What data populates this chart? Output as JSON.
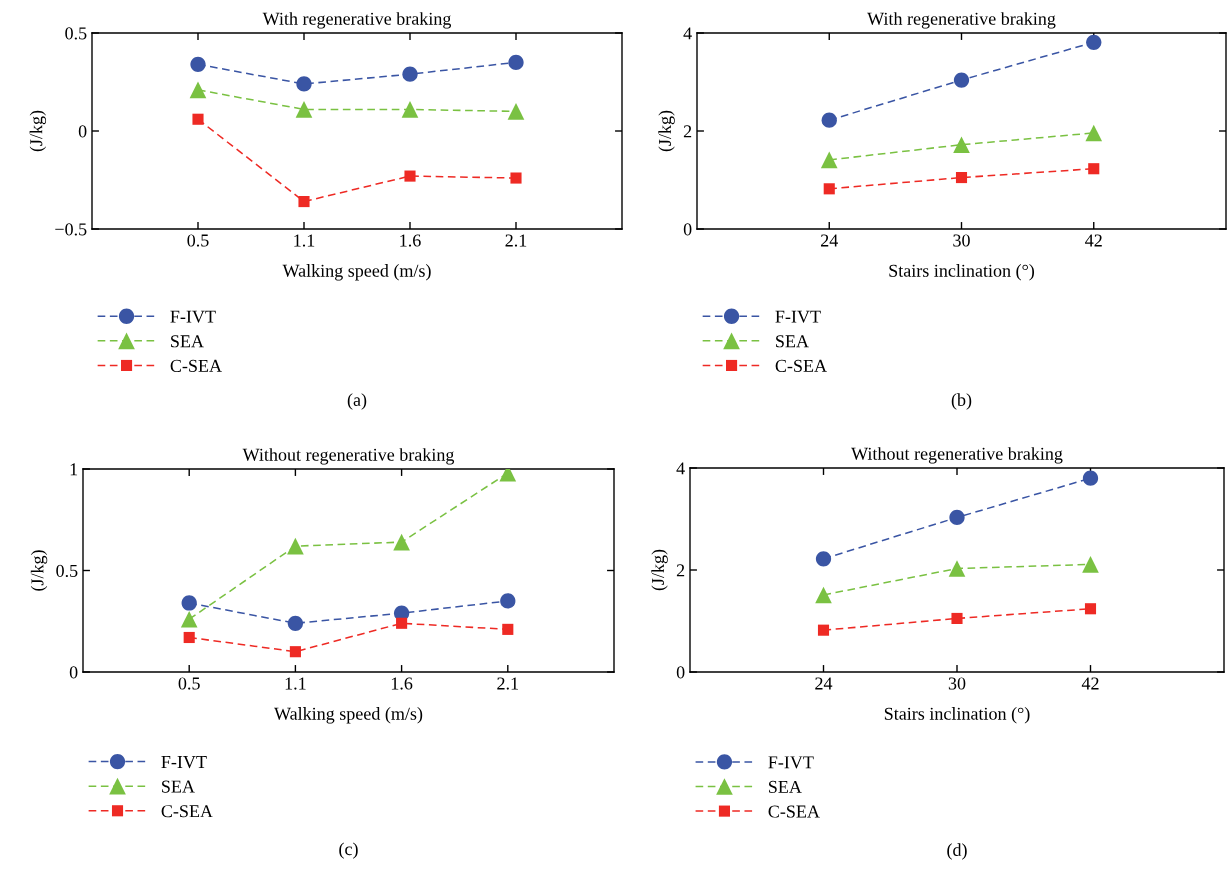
{
  "chart_data": [
    {
      "type": "line",
      "title": "With regenerative braking",
      "xlabel": "Walking speed (m/s)",
      "ylabel": "(J/kg)",
      "categories": [
        "0.5",
        "1.1",
        "1.6",
        "2.1"
      ],
      "ylim": [
        -0.5,
        0.5
      ],
      "yticks": [
        {
          "value": -0.5,
          "label": "−0.5"
        },
        0,
        0.5
      ],
      "legend": "bottom left",
      "line_style": "dashed",
      "grid": false,
      "annotations": [
        "(a)"
      ],
      "series": [
        {
          "name": "F-IVT",
          "color": "#3a55a4",
          "marker": "circle",
          "values": [
            0.34,
            0.24,
            0.29,
            0.35
          ]
        },
        {
          "name": "SEA",
          "color": "#7ac142",
          "marker": "triangle",
          "values": [
            0.21,
            0.11,
            0.11,
            0.1
          ]
        },
        {
          "name": "C-SEA",
          "color": "#ee2a24",
          "marker": "square",
          "values": [
            0.06,
            -0.36,
            -0.23,
            -0.24
          ]
        }
      ]
    },
    {
      "type": "line",
      "title": "With regenerative braking",
      "xlabel": "Stairs inclination (°)",
      "ylabel": "(J/kg)",
      "categories": [
        "24",
        "30",
        "42"
      ],
      "ylim": [
        0,
        4
      ],
      "yticks": [
        0,
        2,
        4
      ],
      "legend": "bottom left",
      "line_style": "dashed",
      "grid": false,
      "annotations": [
        "(b)"
      ],
      "series": [
        {
          "name": "F-IVT",
          "color": "#3a55a4",
          "marker": "circle",
          "values": [
            2.22,
            3.04,
            3.81
          ]
        },
        {
          "name": "SEA",
          "color": "#7ac142",
          "marker": "triangle",
          "values": [
            1.41,
            1.72,
            1.96
          ]
        },
        {
          "name": "C-SEA",
          "color": "#ee2a24",
          "marker": "square",
          "values": [
            0.82,
            1.05,
            1.23
          ]
        }
      ]
    },
    {
      "type": "line",
      "title": "Without regenerative braking",
      "xlabel": "Walking speed (m/s)",
      "ylabel": "(J/kg)",
      "categories": [
        "0.5",
        "1.1",
        "1.6",
        "2.1"
      ],
      "ylim": [
        0,
        1
      ],
      "yticks": [
        0,
        0.5,
        1
      ],
      "legend": "bottom left",
      "line_style": "dashed",
      "grid": false,
      "annotations": [
        "(c)"
      ],
      "series": [
        {
          "name": "F-IVT",
          "color": "#3a55a4",
          "marker": "circle",
          "values": [
            0.34,
            0.24,
            0.29,
            0.35
          ]
        },
        {
          "name": "SEA",
          "color": "#7ac142",
          "marker": "triangle",
          "values": [
            0.26,
            0.62,
            0.64,
            0.98
          ]
        },
        {
          "name": "C-SEA",
          "color": "#ee2a24",
          "marker": "square",
          "values": [
            0.17,
            0.1,
            0.24,
            0.21
          ]
        }
      ]
    },
    {
      "type": "line",
      "title": "Without regenerative braking",
      "xlabel": "Stairs inclination (°)",
      "ylabel": "(J/kg)",
      "categories": [
        "24",
        "30",
        "42"
      ],
      "ylim": [
        0,
        4
      ],
      "yticks": [
        0,
        2,
        4
      ],
      "legend": "bottom left",
      "line_style": "dashed",
      "grid": false,
      "annotations": [
        "(d)"
      ],
      "series": [
        {
          "name": "F-IVT",
          "color": "#3a55a4",
          "marker": "circle",
          "values": [
            2.22,
            3.03,
            3.8
          ]
        },
        {
          "name": "SEA",
          "color": "#7ac142",
          "marker": "triangle",
          "values": [
            1.51,
            2.03,
            2.11
          ]
        },
        {
          "name": "C-SEA",
          "color": "#ee2a24",
          "marker": "square",
          "values": [
            0.82,
            1.05,
            1.24
          ]
        }
      ]
    }
  ]
}
